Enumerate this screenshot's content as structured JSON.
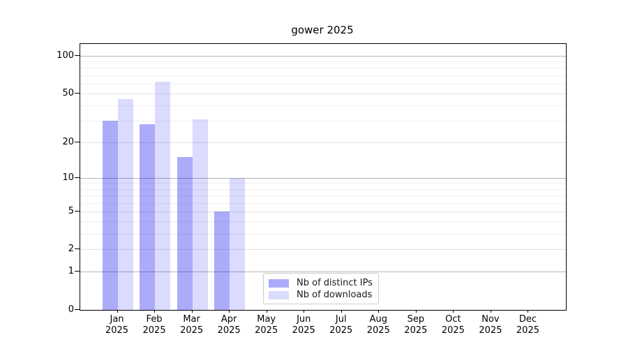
{
  "chart_data": {
    "type": "bar",
    "title": "gower 2025",
    "x_months": [
      "Jan",
      "Feb",
      "Mar",
      "Apr",
      "May",
      "Jun",
      "Jul",
      "Aug",
      "Sep",
      "Oct",
      "Nov",
      "Dec"
    ],
    "x_year": "2025",
    "categories": [
      "Jan 2025",
      "Feb 2025",
      "Mar 2025",
      "Apr 2025",
      "May 2025",
      "Jun 2025",
      "Jul 2025",
      "Aug 2025",
      "Sep 2025",
      "Oct 2025",
      "Nov 2025",
      "Dec 2025"
    ],
    "series": [
      {
        "name": "Nb of distinct IPs",
        "color": "rgba(0,0,240,0.33)",
        "values": [
          30,
          28,
          15,
          5,
          0,
          0,
          0,
          0,
          0,
          0,
          0,
          0
        ]
      },
      {
        "name": "Nb of downloads",
        "color": "rgba(0,0,240,0.14)",
        "values": [
          45,
          62,
          31,
          10,
          0,
          0,
          0,
          0,
          0,
          0,
          0,
          0
        ]
      }
    ],
    "xlabel": "",
    "ylabel": "",
    "y_scale": "log10(1+y)",
    "y_ticks": [
      0,
      1,
      2,
      5,
      10,
      20,
      50,
      100
    ],
    "y_decade_lines": [
      1,
      10,
      100
    ],
    "y_labeled_lines": [
      2,
      5,
      20,
      50
    ],
    "y_minor_lines": [
      3,
      4,
      6,
      7,
      8,
      9,
      30,
      40,
      60,
      70,
      80,
      90
    ],
    "ylim": [
      0,
      124
    ],
    "grid": "horizontal",
    "legend_position": "bottom-center"
  },
  "colors": {
    "background": "#ffffff",
    "axis": "#000000",
    "grid_decade": "#b4b4b4",
    "grid_labeled": "#e3e3e3",
    "grid_minor": "#f0f0f0",
    "bar_distinct_ips": "rgba(0,0,240,0.33)",
    "bar_downloads": "rgba(0,0,240,0.14)",
    "legend_border": "#cccccc"
  }
}
